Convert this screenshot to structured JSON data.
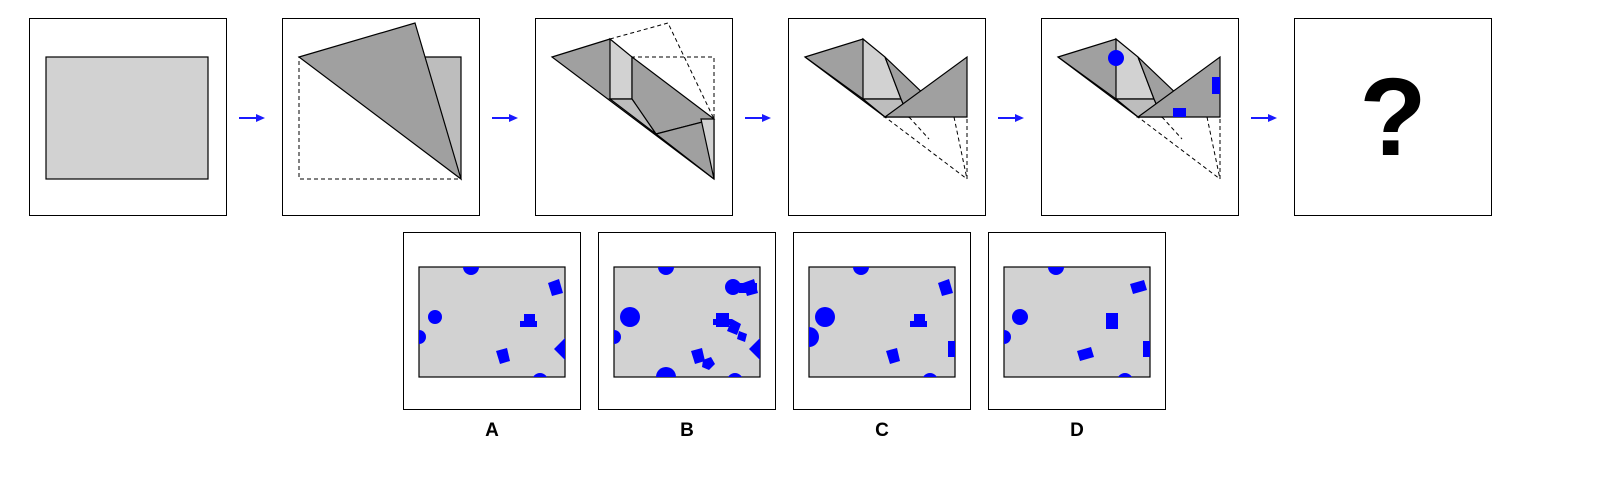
{
  "puzzle": {
    "question_mark": "?",
    "colors": {
      "paper": "#d2d2d2",
      "folded_dark": "#a0a0a0",
      "folded_mid": "#bdbdbd",
      "hole": "#0000ff",
      "arrow": "#1a1aff",
      "outline": "#000000"
    }
  },
  "options": [
    {
      "label": "A"
    },
    {
      "label": "B"
    },
    {
      "label": "C"
    },
    {
      "label": "D"
    }
  ]
}
